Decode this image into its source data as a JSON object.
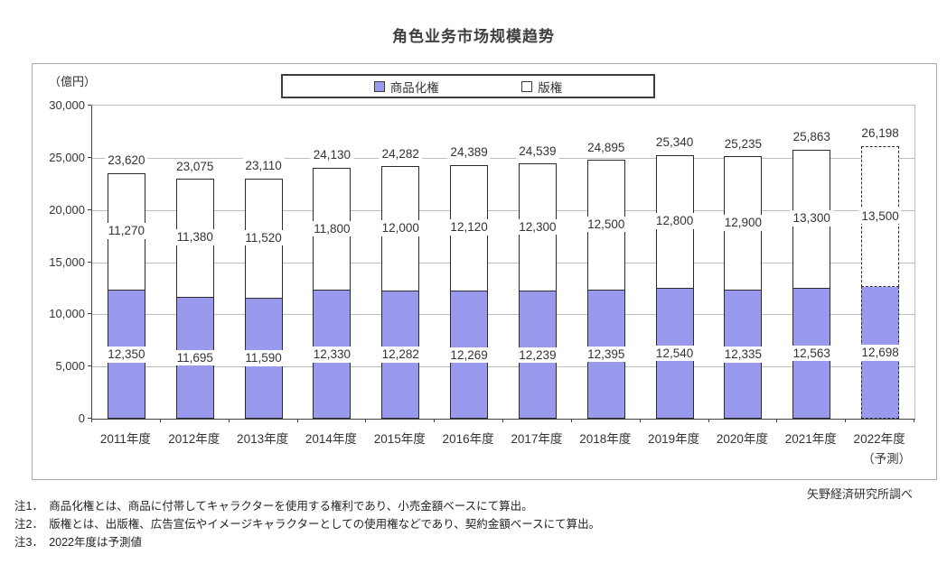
{
  "title": "角色业务市场规模趋势",
  "chart": {
    "unit_label": "（億円）",
    "source": "矢野経済研究所調べ",
    "notes": [
      "注1．　商品化権とは、商品に付帯してキャラクターを使用する権利であり、小売金額ベースにて算出。",
      "注2．　版権とは、出版権、広告宣伝やイメージキャラクターとしての使用権などであり、契約金額ベースにて算出。",
      "注3．　2022年度は予測値"
    ]
  },
  "chart_data": {
    "type": "bar",
    "stacked": true,
    "title": "角色业务市场规模趋势",
    "unit": "億円",
    "categories": [
      "2011年度",
      "2012年度",
      "2013年度",
      "2014年度",
      "2015年度",
      "2016年度",
      "2017年度",
      "2018年度",
      "2019年度",
      "2020年度",
      "2021年度",
      "2022年度"
    ],
    "last_category_note": "（予測）",
    "series": [
      {
        "name": "商品化権",
        "color": "#9999EE",
        "values": [
          12350,
          11695,
          11590,
          12330,
          12282,
          12269,
          12239,
          12395,
          12540,
          12335,
          12563,
          12698
        ]
      },
      {
        "name": "版権",
        "color": "#FFFFFF",
        "values": [
          11270,
          11380,
          11520,
          11800,
          12000,
          12120,
          12300,
          12500,
          12800,
          12900,
          13300,
          13500
        ]
      }
    ],
    "totals": [
      23620,
      23075,
      23110,
      24130,
      24282,
      24389,
      24539,
      24895,
      25340,
      25235,
      25863,
      26198
    ],
    "ylim": [
      0,
      30000
    ],
    "ytick_interval": 5000,
    "grid": true,
    "legend_position": "top-center",
    "forecast_index": 11,
    "bar_border_color": "#2b2b2b",
    "gridline_color": "#bdbdbd"
  }
}
